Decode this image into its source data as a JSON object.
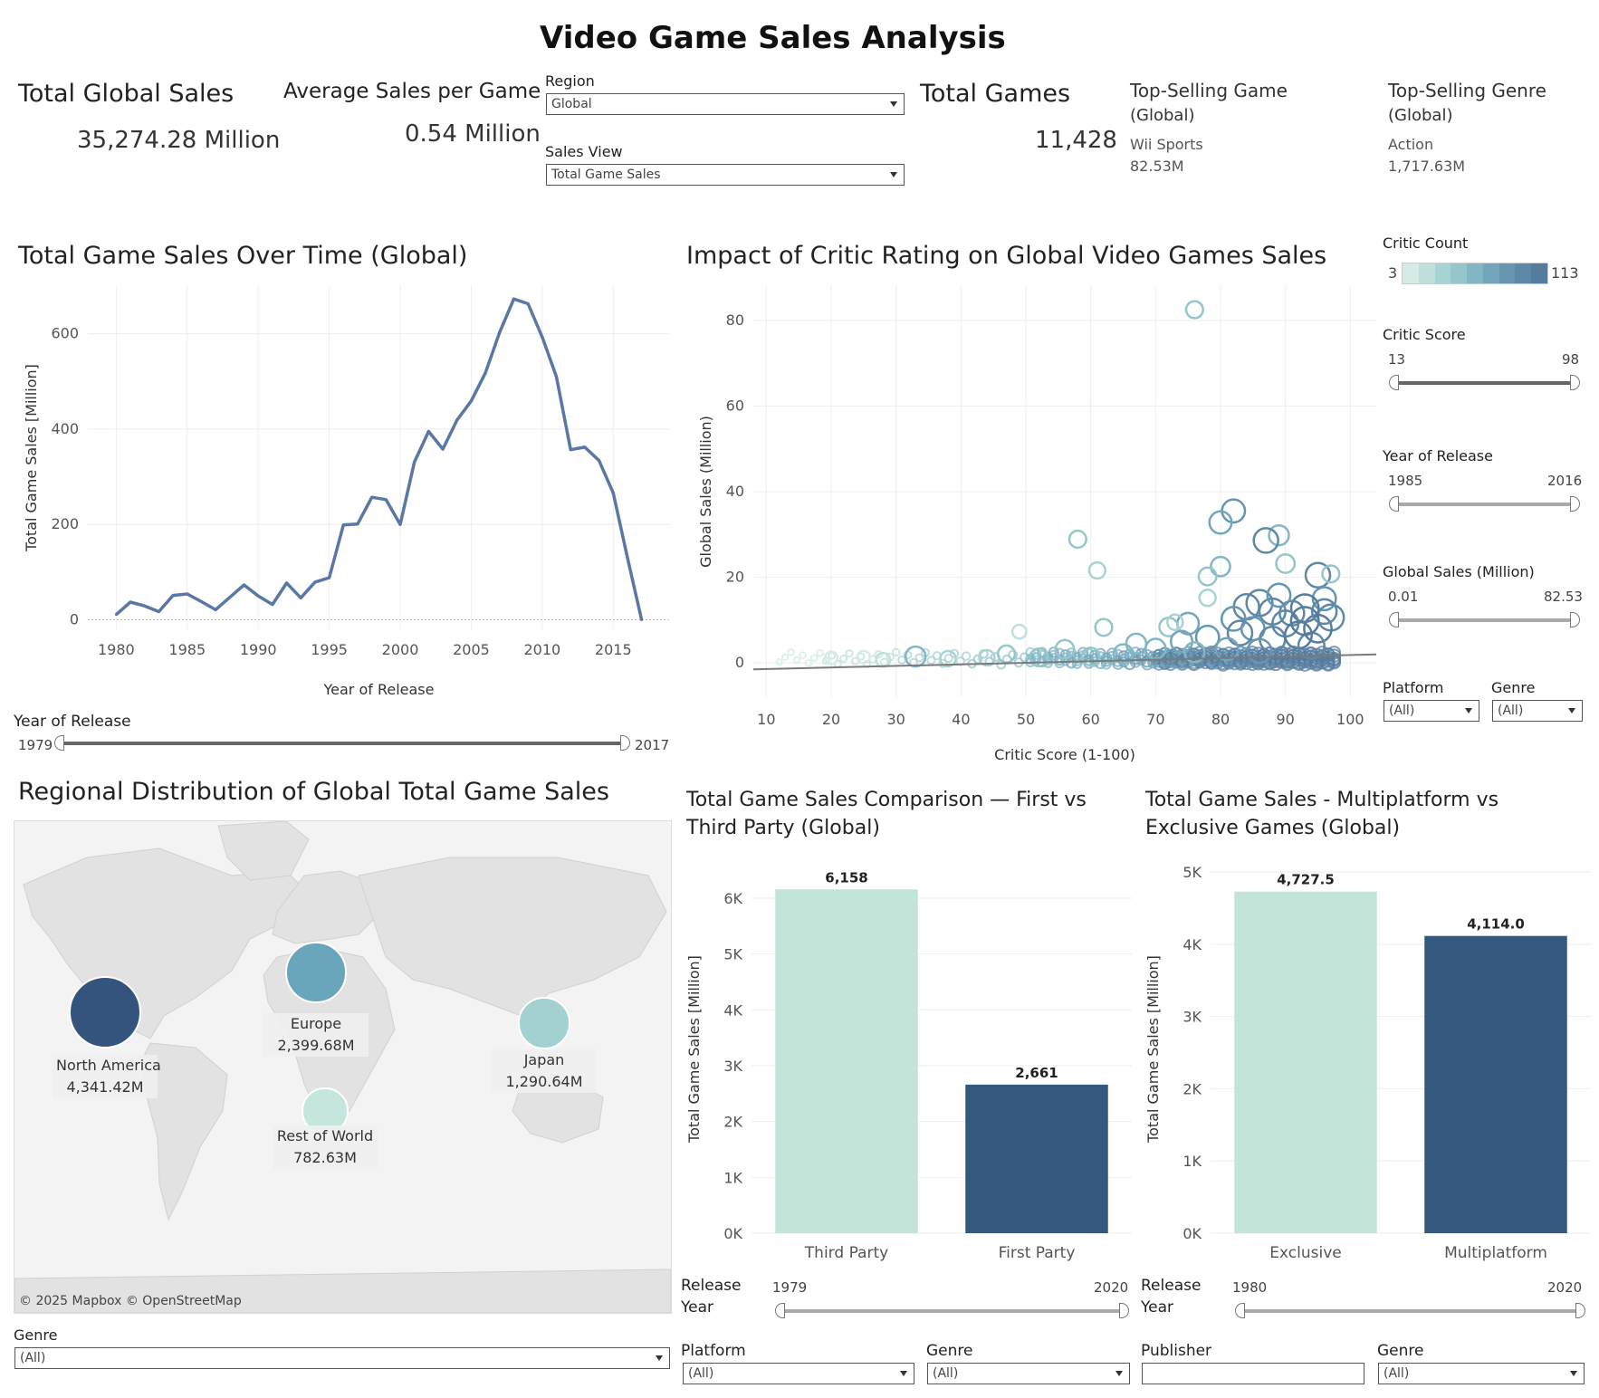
{
  "page": {
    "title": "Video Game Sales Analysis"
  },
  "kpis": {
    "total_global_sales": {
      "label": "Total Global Sales",
      "value": "35,274.28 Million"
    },
    "avg_sales": {
      "label": "Average Sales per Game",
      "value": "0.54 Million"
    },
    "total_games": {
      "label": "Total Games",
      "value": "11,428"
    },
    "top_game": {
      "label1": "Top-Selling Game",
      "label2": "(Global)",
      "name": "Wii Sports",
      "value": "82.53M"
    },
    "top_genre": {
      "label1": "Top-Selling Genre",
      "label2": "(Global)",
      "name": "Action",
      "value": "1,717.63M"
    }
  },
  "filters": {
    "region": {
      "label": "Region",
      "value": "Global"
    },
    "sales_view": {
      "label": "Sales View",
      "value": "Total Game Sales"
    }
  },
  "line_section": {
    "title": "Total Game Sales Over Time (Global)",
    "slider": {
      "label": "Year of Release",
      "min": "1979",
      "max": "2017"
    }
  },
  "scatter_section": {
    "title": "Impact of Critic Rating on Global Video Games Sales",
    "legend": {
      "title": "Critic Count",
      "min": "3",
      "max": "113",
      "colors": [
        "#d5ebe5",
        "#bfe0db",
        "#a8d3d3",
        "#94c6cc",
        "#82b6c4",
        "#73a6bb",
        "#6796b1",
        "#5d88a7",
        "#557b9e"
      ]
    },
    "critic_score": {
      "label": "Critic Score",
      "min": "13",
      "max": "98"
    },
    "year": {
      "label": "Year of Release",
      "min": "1985",
      "max": "2016"
    },
    "global_sales": {
      "label": "Global Sales (Million)",
      "min": "0.01",
      "max": "82.53"
    },
    "platform": {
      "label": "Platform",
      "value": "(All)"
    },
    "genre": {
      "label": "Genre",
      "value": "(All)"
    }
  },
  "map_section": {
    "title": "Regional Distribution of Global Total Game Sales",
    "attribution": "© 2025 Mapbox  © OpenStreetMap",
    "regions": [
      {
        "name": "North America",
        "value": "4,341.42M",
        "sales": 4341.42,
        "color": "#35547d"
      },
      {
        "name": "Europe",
        "value": "2,399.68M",
        "sales": 2399.68,
        "color": "#6aa6bb"
      },
      {
        "name": "Japan",
        "value": "1,290.64M",
        "sales": 1290.64,
        "color": "#a3d1d1"
      },
      {
        "name": "Rest of World",
        "value": "782.63M",
        "sales": 782.63,
        "color": "#c4e6dc"
      }
    ],
    "genre": {
      "label": "Genre",
      "value": "(All)"
    }
  },
  "party_section": {
    "title": "Total Game Sales Comparison — First vs Third Party (Global)",
    "slider": {
      "label1": "Release",
      "label2": "Year",
      "min": "1979",
      "max": "2020"
    },
    "platform": {
      "label": "Platform",
      "value": "(All)"
    },
    "genre": {
      "label": "Genre",
      "value": "(All)"
    }
  },
  "multi_section": {
    "title": "Total Game Sales - Multiplatform vs Exclusive Games (Global)",
    "slider": {
      "label1": "Release",
      "label2": "Year",
      "min": "1980",
      "max": "2020"
    },
    "publisher": {
      "label": "Publisher",
      "value": ""
    },
    "genre": {
      "label": "Genre",
      "value": "(All)"
    }
  },
  "chart_data": [
    {
      "id": "sales_over_time",
      "type": "line",
      "xlabel": "Year of Release",
      "ylabel": "Total Game Sales [Million]",
      "xlim": [
        1978,
        2019
      ],
      "ylim": [
        -20,
        700
      ],
      "xticks": [
        1980,
        1985,
        1990,
        1995,
        2000,
        2005,
        2010,
        2015
      ],
      "yticks": [
        0,
        200,
        400,
        600
      ],
      "color": "#5a77a6",
      "x": [
        1980,
        1981,
        1982,
        1983,
        1984,
        1985,
        1986,
        1987,
        1988,
        1989,
        1990,
        1991,
        1992,
        1993,
        1994,
        1995,
        1996,
        1997,
        1998,
        1999,
        2000,
        2001,
        2002,
        2003,
        2004,
        2005,
        2006,
        2007,
        2008,
        2009,
        2010,
        2011,
        2012,
        2013,
        2014,
        2015,
        2016,
        2017
      ],
      "y": [
        11,
        37,
        29,
        17,
        51,
        54,
        38,
        21,
        47,
        73,
        50,
        32,
        77,
        46,
        79,
        88,
        199,
        201,
        257,
        252,
        200,
        331,
        395,
        358,
        419,
        459,
        518,
        603,
        673,
        663,
        593,
        510,
        357,
        362,
        334,
        266,
        130,
        0
      ]
    },
    {
      "id": "critic_scatter",
      "type": "scatter",
      "xlabel": "Critic Score (1-100)",
      "ylabel": "Global Sales (Million)",
      "xlim": [
        8,
        104
      ],
      "ylim": [
        -8,
        88
      ],
      "xticks": [
        10,
        20,
        30,
        40,
        50,
        60,
        70,
        80,
        90,
        100
      ],
      "yticks": [
        0,
        20,
        40,
        60,
        80
      ],
      "trend": {
        "x": [
          8,
          104
        ],
        "y": [
          -1.5,
          2.0
        ]
      },
      "points": [
        {
          "x": 76,
          "y": 82.5,
          "c": 40
        },
        {
          "x": 58,
          "y": 28.9,
          "c": 40
        },
        {
          "x": 61,
          "y": 21.6,
          "c": 35
        },
        {
          "x": 82,
          "y": 35.5,
          "c": 80
        },
        {
          "x": 80,
          "y": 32.8,
          "c": 75
        },
        {
          "x": 89,
          "y": 29.8,
          "c": 60
        },
        {
          "x": 87,
          "y": 28.6,
          "c": 90
        },
        {
          "x": 90,
          "y": 23.2,
          "c": 50
        },
        {
          "x": 80,
          "y": 22.5,
          "c": 55
        },
        {
          "x": 78,
          "y": 20.2,
          "c": 45
        },
        {
          "x": 95,
          "y": 20.5,
          "c": 90
        },
        {
          "x": 97,
          "y": 20.8,
          "c": 40
        },
        {
          "x": 78,
          "y": 15.2,
          "c": 35
        },
        {
          "x": 96,
          "y": 15.0,
          "c": 80
        },
        {
          "x": 86,
          "y": 14.0,
          "c": 100
        },
        {
          "x": 84,
          "y": 13.1,
          "c": 95
        },
        {
          "x": 93,
          "y": 12.8,
          "c": 110
        },
        {
          "x": 97,
          "y": 10.6,
          "c": 100
        },
        {
          "x": 91,
          "y": 11.6,
          "c": 90
        },
        {
          "x": 88,
          "y": 12.0,
          "c": 100
        },
        {
          "x": 82,
          "y": 10.3,
          "c": 85
        },
        {
          "x": 75,
          "y": 9.2,
          "c": 70
        },
        {
          "x": 72,
          "y": 8.4,
          "c": 50
        },
        {
          "x": 62,
          "y": 8.3,
          "c": 40
        },
        {
          "x": 49,
          "y": 7.3,
          "c": 20
        },
        {
          "x": 95,
          "y": 8.0,
          "c": 110
        },
        {
          "x": 90,
          "y": 9.2,
          "c": 100
        },
        {
          "x": 85,
          "y": 8.0,
          "c": 80
        },
        {
          "x": 33,
          "y": 1.5,
          "c": 60
        },
        {
          "x": 67,
          "y": 4.5,
          "c": 60
        },
        {
          "x": 56,
          "y": 3.2,
          "c": 50
        },
        {
          "x": 47,
          "y": 2.1,
          "c": 40
        },
        {
          "x": 20,
          "y": 1.2,
          "c": 10
        },
        {
          "x": 25,
          "y": 1.4,
          "c": 10
        },
        {
          "x": 28,
          "y": 0.7,
          "c": 20
        },
        {
          "x": 38,
          "y": 1.0,
          "c": 30
        },
        {
          "x": 44,
          "y": 1.2,
          "c": 30
        },
        {
          "x": 52,
          "y": 1.3,
          "c": 45
        },
        {
          "x": 70,
          "y": 3.3,
          "c": 60
        },
        {
          "x": 74,
          "y": 5.0,
          "c": 70
        },
        {
          "x": 78,
          "y": 6.0,
          "c": 80
        },
        {
          "x": 83,
          "y": 7.0,
          "c": 90
        },
        {
          "x": 88,
          "y": 5.5,
          "c": 95
        },
        {
          "x": 92,
          "y": 6.5,
          "c": 105
        },
        {
          "x": 94,
          "y": 4.0,
          "c": 100
        },
        {
          "x": 81,
          "y": 3.2,
          "c": 75
        },
        {
          "x": 86,
          "y": 2.8,
          "c": 85
        },
        {
          "x": 76,
          "y": 2.5,
          "c": 60
        },
        {
          "x": 65,
          "y": 2.1,
          "c": 55
        },
        {
          "x": 60,
          "y": 1.5,
          "c": 45
        },
        {
          "x": 93,
          "y": 9.8,
          "c": 112
        },
        {
          "x": 96,
          "y": 12.0,
          "c": 90
        },
        {
          "x": 89,
          "y": 15.8,
          "c": 80
        },
        {
          "x": 73,
          "y": 9.5,
          "c": 30
        }
      ]
    },
    {
      "id": "first_vs_third",
      "type": "bar",
      "categories": [
        "Third Party",
        "First Party"
      ],
      "values": [
        6158,
        2661
      ],
      "labels": [
        "6,158",
        "2,661"
      ],
      "colors": [
        "#c2e4d9",
        "#35587f"
      ],
      "ylabel": "Total Game Sales [Million]",
      "ylim": [
        0,
        6600
      ],
      "yticks": [
        0,
        1000,
        2000,
        3000,
        4000,
        5000,
        6000
      ],
      "yticklabels": [
        "0K",
        "1K",
        "2K",
        "3K",
        "4K",
        "5K",
        "6K"
      ]
    },
    {
      "id": "multi_vs_exclusive",
      "type": "bar",
      "categories": [
        "Exclusive",
        "Multiplatform"
      ],
      "values": [
        4727.5,
        4114.0
      ],
      "labels": [
        "4,727.5",
        "4,114.0"
      ],
      "colors": [
        "#c2e4d9",
        "#35587f"
      ],
      "ylabel": "Total Game Sales [Million]",
      "ylim": [
        0,
        5100
      ],
      "yticks": [
        0,
        1000,
        2000,
        3000,
        4000,
        5000
      ],
      "yticklabels": [
        "0K",
        "1K",
        "2K",
        "3K",
        "4K",
        "5K"
      ]
    }
  ]
}
